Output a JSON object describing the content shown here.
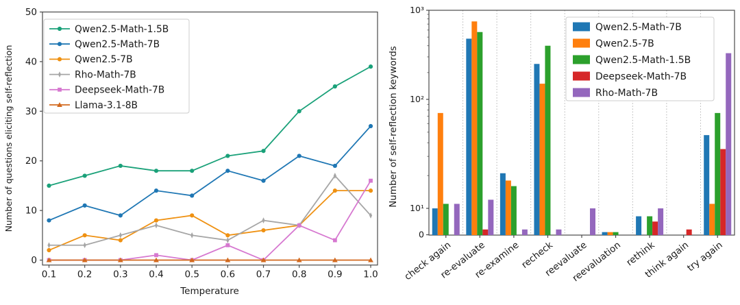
{
  "chart_data": [
    {
      "type": "line",
      "title": "",
      "xlabel": "Temperature",
      "ylabel": "Number of questions eliciting self-reflection",
      "x": [
        0.1,
        0.2,
        0.3,
        0.4,
        0.5,
        0.6,
        0.7,
        0.8,
        0.9,
        1.0
      ],
      "x_tick_labels": [
        "0.1",
        "0.2",
        "0.3",
        "0.4",
        "0.5",
        "0.6",
        "0.7",
        "0.8",
        "0.9",
        "1.0"
      ],
      "y_ticks": [
        0,
        10,
        20,
        30,
        40,
        50
      ],
      "ylim": [
        -1,
        50
      ],
      "grid": false,
      "legend_position": "upper left",
      "axis_color": "#4a4a4a",
      "series": [
        {
          "name": "Qwen2.5-Math-1.5B",
          "color": "#1aa179",
          "marker": "circle",
          "values": [
            15,
            17,
            19,
            18,
            18,
            21,
            22,
            30,
            35,
            39
          ]
        },
        {
          "name": "Qwen2.5-Math-7B",
          "color": "#1f77b4",
          "marker": "circle",
          "values": [
            8,
            11,
            9,
            14,
            13,
            18,
            16,
            21,
            19,
            27
          ]
        },
        {
          "name": "Qwen2.5-7B",
          "color": "#ef9112",
          "marker": "circle",
          "values": [
            2,
            5,
            4,
            8,
            9,
            5,
            6,
            7,
            14,
            14
          ]
        },
        {
          "name": "Rho-Math-7B",
          "color": "#a6a6a6",
          "marker": "thin-diamond",
          "values": [
            3,
            3,
            5,
            7,
            5,
            4,
            8,
            7,
            17,
            9
          ]
        },
        {
          "name": "Deepseek-Math-7B",
          "color": "#d678d0",
          "marker": "square",
          "values": [
            0,
            0,
            0,
            1,
            0,
            3,
            0,
            7,
            4,
            16
          ]
        },
        {
          "name": "Llama-3.1-8B",
          "color": "#d2691e",
          "marker": "triangle",
          "values": [
            0,
            0,
            0,
            0,
            0,
            0,
            0,
            0,
            0,
            0
          ]
        }
      ]
    },
    {
      "type": "bar",
      "title": "",
      "xlabel": "",
      "ylabel": "Number of self-reflection keywords",
      "yscale": "symlog",
      "categories": [
        "check again",
        "re-evaluate",
        "re-examine",
        "recheck",
        "reevaluate",
        "reevaluation",
        "rethink",
        "think again",
        "try again"
      ],
      "y_tick_values": [
        0,
        10,
        100,
        1000
      ],
      "y_tick_labels": [
        "0",
        "10¹",
        "10²",
        "10³"
      ],
      "ylim": [
        0,
        1000
      ],
      "grid": "vertical-dotted",
      "grid_color": "#b3b3b3",
      "legend_position": "upper right",
      "axis_color": "#4a4a4a",
      "series": [
        {
          "name": "Qwen2.5-Math-7B",
          "color": "#1f77b4",
          "values": [
            10,
            480,
            21,
            250,
            0,
            1,
            7,
            0,
            47
          ]
        },
        {
          "name": "Qwen2.5-7B",
          "color": "#ff7f0e",
          "values": [
            75,
            750,
            18,
            150,
            0,
            1,
            0,
            0,
            11
          ]
        },
        {
          "name": "Qwen2.5-Math-1.5B",
          "color": "#2ca02c",
          "values": [
            11,
            570,
            16,
            400,
            0,
            1,
            7,
            0,
            75
          ]
        },
        {
          "name": "Deepseek-Math-7B",
          "color": "#d62728",
          "values": [
            0,
            2,
            0,
            0,
            0,
            0,
            5,
            2,
            35
          ]
        },
        {
          "name": "Rho-Math-7B",
          "color": "#9467bd",
          "values": [
            11,
            12,
            2,
            2,
            10,
            0,
            10,
            0,
            330
          ]
        }
      ]
    }
  ]
}
